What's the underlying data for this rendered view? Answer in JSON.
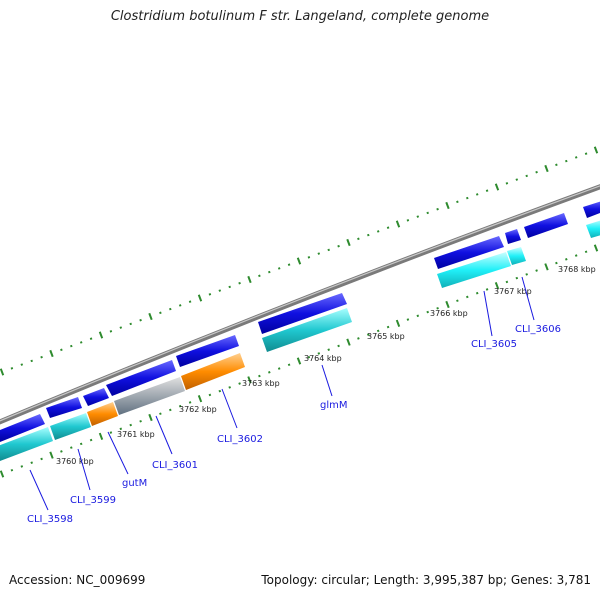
{
  "title": "Clostridium botulinum F str. Langeland, complete genome",
  "footer": {
    "accession": "Accession: NC_009699",
    "summary": "Topology: circular; Length: 3,995,387 bp; Genes: 3,781"
  },
  "kbp_labels": [
    "3760 kbp",
    "3761 kbp",
    "3762 kbp",
    "3763 kbp",
    "3764 kbp",
    "3765 kbp",
    "3766 kbp",
    "3767 kbp",
    "3768 kbp"
  ],
  "gene_labels": [
    "CLI_3598",
    "CLI_3599",
    "gutM",
    "CLI_3601",
    "CLI_3602",
    "glmM",
    "CLI_3605",
    "CLI_3606"
  ],
  "colors": {
    "backbone": "#8a8a8a",
    "tick": "#2e8b2e",
    "gene_forward": "#1010e0",
    "cds_cyan": "#20c8d0",
    "cds_orange": "#ff8c00",
    "cds_gray": "#a8a8a8",
    "label": "#1a1ae0"
  }
}
